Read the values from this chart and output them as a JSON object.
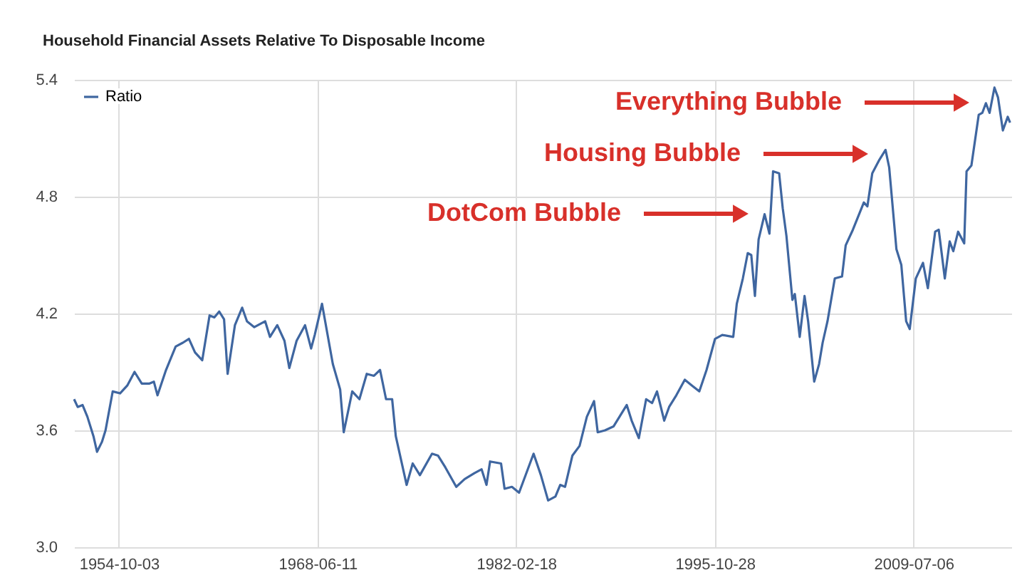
{
  "chart_data": {
    "type": "line",
    "title": "Household Financial Assets Relative To Disposable Income",
    "x": [
      "1951-09",
      "1951-12",
      "1952-04",
      "1952-08",
      "1953-01",
      "1953-04",
      "1953-08",
      "1953-11",
      "1954-05",
      "1954-11",
      "1955-05",
      "1955-11",
      "1956-05",
      "1956-11",
      "1957-03",
      "1957-06",
      "1958-01",
      "1958-09",
      "1959-03",
      "1959-08",
      "1960-01",
      "1960-07",
      "1961-01",
      "1961-05",
      "1961-09",
      "1962-01",
      "1962-04",
      "1962-10",
      "1963-04",
      "1963-08",
      "1964-02",
      "1964-11",
      "1965-03",
      "1965-09",
      "1966-03",
      "1966-07",
      "1967-01",
      "1967-08",
      "1968-01",
      "1968-04",
      "1968-10",
      "1969-07",
      "1970-01",
      "1970-04",
      "1970-11",
      "1971-05",
      "1971-11",
      "1972-05",
      "1972-10",
      "1973-03",
      "1973-08",
      "1973-11",
      "1974-08",
      "1975-01",
      "1975-07",
      "1976-05",
      "1976-10",
      "1977-04",
      "1978-01",
      "1978-08",
      "1979-04",
      "1979-10",
      "1980-02",
      "1980-05",
      "1981-02",
      "1981-05",
      "1981-11",
      "1982-05",
      "1983-05",
      "1983-11",
      "1984-05",
      "1984-11",
      "1985-03",
      "1985-07",
      "1986-01",
      "1986-07",
      "1987-01",
      "1987-07",
      "1987-10",
      "1988-04",
      "1988-11",
      "1989-10",
      "1990-02",
      "1990-08",
      "1991-02",
      "1991-07",
      "1991-11",
      "1992-05",
      "1992-09",
      "1993-03",
      "1993-10",
      "1994-04",
      "1994-10",
      "1995-04",
      "1995-11",
      "1996-05",
      "1997-02",
      "1997-05",
      "1997-10",
      "1998-02",
      "1998-05",
      "1998-08",
      "1998-11",
      "1999-04",
      "1999-08",
      "1999-11",
      "2000-04",
      "2000-07",
      "2000-10",
      "2001-03",
      "2001-05",
      "2001-09",
      "2002-01",
      "2002-04",
      "2002-09",
      "2003-01",
      "2003-04",
      "2003-08",
      "2004-02",
      "2004-08",
      "2004-11",
      "2005-05",
      "2006-02",
      "2006-05",
      "2006-09",
      "2007-03",
      "2007-08",
      "2007-11",
      "2008-05",
      "2008-09",
      "2009-01",
      "2009-04",
      "2009-09",
      "2010-03",
      "2010-07",
      "2011-01",
      "2011-04",
      "2011-09",
      "2012-01",
      "2012-04",
      "2012-08",
      "2013-01",
      "2013-03",
      "2013-07",
      "2014-01",
      "2014-04",
      "2014-07",
      "2014-10",
      "2015-02",
      "2015-05",
      "2015-09",
      "2016-01",
      "2016-03"
    ],
    "series": [
      {
        "name": "Ratio",
        "color": "#3f66a0",
        "values": [
          3.76,
          3.72,
          3.73,
          3.67,
          3.57,
          3.49,
          3.54,
          3.6,
          3.8,
          3.79,
          3.83,
          3.9,
          3.84,
          3.84,
          3.85,
          3.78,
          3.91,
          4.03,
          4.05,
          4.07,
          4.0,
          3.96,
          4.19,
          4.18,
          4.21,
          4.17,
          3.89,
          4.14,
          4.23,
          4.16,
          4.13,
          4.16,
          4.08,
          4.14,
          4.06,
          3.92,
          4.06,
          4.14,
          4.02,
          4.09,
          4.25,
          3.94,
          3.81,
          3.59,
          3.8,
          3.76,
          3.89,
          3.88,
          3.91,
          3.76,
          3.76,
          3.57,
          3.32,
          3.43,
          3.37,
          3.48,
          3.47,
          3.41,
          3.31,
          3.35,
          3.38,
          3.4,
          3.32,
          3.44,
          3.43,
          3.3,
          3.31,
          3.28,
          3.48,
          3.37,
          3.24,
          3.26,
          3.32,
          3.31,
          3.47,
          3.52,
          3.67,
          3.75,
          3.59,
          3.6,
          3.62,
          3.73,
          3.65,
          3.56,
          3.76,
          3.74,
          3.8,
          3.65,
          3.72,
          3.78,
          3.86,
          3.83,
          3.8,
          3.91,
          4.07,
          4.09,
          4.08,
          4.25,
          4.38,
          4.51,
          4.5,
          4.29,
          4.58,
          4.71,
          4.61,
          4.93,
          4.92,
          4.74,
          4.6,
          4.27,
          4.3,
          4.08,
          4.29,
          4.16,
          3.85,
          3.94,
          4.05,
          4.16,
          4.38,
          4.39,
          4.55,
          4.63,
          4.77,
          4.75,
          4.92,
          4.99,
          5.04,
          4.95,
          4.53,
          4.45,
          4.16,
          4.12,
          4.38,
          4.46,
          4.33,
          4.62,
          4.63,
          4.38,
          4.57,
          4.52,
          4.62,
          4.56,
          4.93,
          4.96,
          5.22,
          5.23,
          5.28,
          5.23,
          5.36,
          5.31,
          5.14,
          5.21,
          5.18
        ]
      }
    ],
    "xlim": [
      "1951-09",
      "2016-04"
    ],
    "xticks": [
      "1954-10-03",
      "1968-06-11",
      "1982-02-18",
      "1995-10-28",
      "2009-07-06"
    ],
    "ylim": [
      3.0,
      5.4
    ],
    "yticks": [
      {
        "value": 3.0,
        "label": "3.0"
      },
      {
        "value": 3.6,
        "label": "3.6"
      },
      {
        "value": 4.2,
        "label": "4.2"
      },
      {
        "value": 4.8,
        "label": "4.8"
      },
      {
        "value": 5.4,
        "label": "5.4"
      }
    ],
    "annotations": [
      "Everything Bubble",
      "Housing Bubble",
      "DotCom Bubble"
    ],
    "grid": true,
    "legend": "top left",
    "marker": "none",
    "line_style": "solid"
  }
}
